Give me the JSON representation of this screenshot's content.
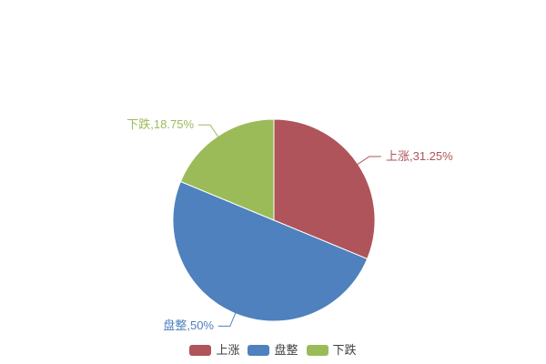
{
  "chart_data": {
    "type": "pie",
    "title": "",
    "categories": [
      "上涨",
      "盘整",
      "下跌"
    ],
    "values": [
      31.25,
      50,
      18.75
    ],
    "value_unit": "%",
    "colors": [
      "#AF545A",
      "#4E81BD",
      "#9BBB59"
    ],
    "start_angle": "12-oclock",
    "direction": "clockwise",
    "slice_labels": [
      "上涨,31.25%",
      "盘整,50%",
      "下跌,18.75%"
    ],
    "legend": {
      "position": "bottom",
      "items": [
        {
          "label": "上涨",
          "color": "#AF545A"
        },
        {
          "label": "盘整",
          "color": "#4E81BD"
        },
        {
          "label": "下跌",
          "color": "#9BBB59"
        }
      ]
    },
    "background": "#ffffff"
  }
}
